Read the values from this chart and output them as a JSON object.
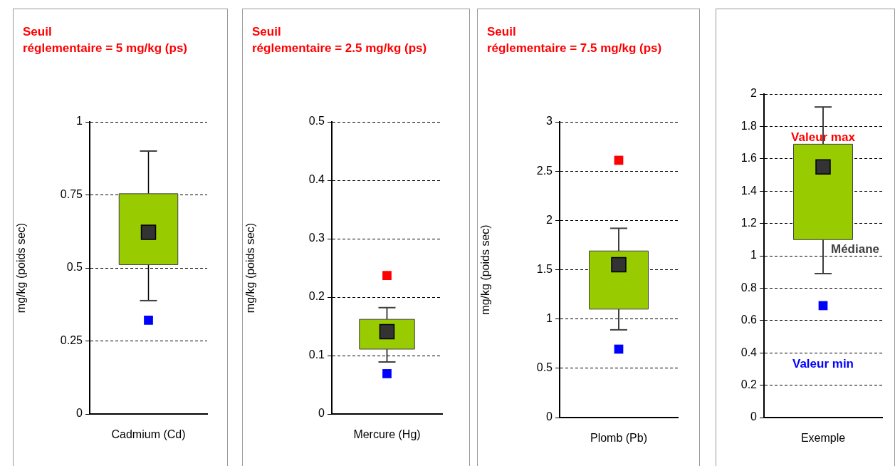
{
  "chart_data": [
    {
      "type": "box",
      "title": "Seuil\nréglementaire = 5 mg/kg (ps)",
      "ylabel": "mg/kg (poids sec)",
      "categories": [
        "Cadmium (Cd)"
      ],
      "color": "#99cc00",
      "boxes": [
        {
          "low": 0.388,
          "q1": 0.511,
          "median": 0.622,
          "q3": 0.754,
          "high": 0.9
        }
      ],
      "series": [
        {
          "type": "scatter",
          "color": "#0000ff",
          "x": [
            "Cadmium (Cd)"
          ],
          "values": [
            0.321
          ]
        }
      ],
      "ylim": [
        0,
        1
      ],
      "yticks": [
        0,
        0.25,
        0.5,
        0.75,
        1
      ],
      "grid": "y",
      "legend": false,
      "marker": "square"
    },
    {
      "type": "box",
      "title": "Seuil\nréglementaire = 2.5 mg/kg (ps)",
      "ylabel": "mg/kg (poids sec)",
      "categories": [
        "Mercure (Hg)"
      ],
      "color": "#99cc00",
      "boxes": [
        {
          "low": 0.089,
          "q1": 0.111,
          "median": 0.141,
          "q3": 0.162,
          "high": 0.182
        }
      ],
      "series": [
        {
          "type": "scatter",
          "color": "#ff0000",
          "x": [
            "Mercure (Hg)"
          ],
          "values": [
            0.237
          ]
        },
        {
          "type": "scatter",
          "color": "#0000ff",
          "x": [
            "Mercure (Hg)"
          ],
          "values": [
            0.069
          ]
        }
      ],
      "ylim": [
        0,
        0.5
      ],
      "yticks": [
        0,
        0.1,
        0.2,
        0.3,
        0.4,
        0.5
      ],
      "grid": "y",
      "legend": false,
      "marker": "square"
    },
    {
      "type": "box",
      "title": "Seuil\nréglementaire = 7.5 mg/kg (ps)",
      "ylabel": "mg/kg (poids sec)",
      "categories": [
        "Plomb (Pb)"
      ],
      "color": "#99cc00",
      "boxes": [
        {
          "low": 0.89,
          "q1": 1.1,
          "median": 1.55,
          "q3": 1.69,
          "high": 1.92
        }
      ],
      "series": [
        {
          "type": "scatter",
          "color": "#ff0000",
          "x": [
            "Plomb (Pb)"
          ],
          "values": [
            2.61
          ]
        },
        {
          "type": "scatter",
          "color": "#0000ff",
          "x": [
            "Plomb (Pb)"
          ],
          "values": [
            0.694
          ]
        }
      ],
      "ylim": [
        0,
        3
      ],
      "yticks": [
        0,
        0.5,
        1,
        1.5,
        2,
        2.5,
        3
      ],
      "grid": "y",
      "legend": false,
      "marker": "square"
    },
    {
      "type": "box",
      "categories": [
        "Exemple"
      ],
      "color": "#99cc00",
      "boxes": [
        {
          "low": 0.89,
          "q1": 1.1,
          "median": 1.55,
          "q3": 1.69,
          "high": 1.92
        }
      ],
      "series": [
        {
          "type": "scatter",
          "color": "#0000ff",
          "x": [
            "Exemple"
          ],
          "values": [
            0.692
          ]
        }
      ],
      "ylim": [
        0,
        2
      ],
      "yticks": [
        0,
        0.2,
        0.4,
        0.6,
        0.8,
        1,
        1.2,
        1.4,
        1.6,
        1.8,
        2
      ],
      "grid": "y",
      "legend": false,
      "marker": "square",
      "annotations": [
        "Valeur max",
        "Médiane",
        "Valeur min"
      ]
    }
  ]
}
